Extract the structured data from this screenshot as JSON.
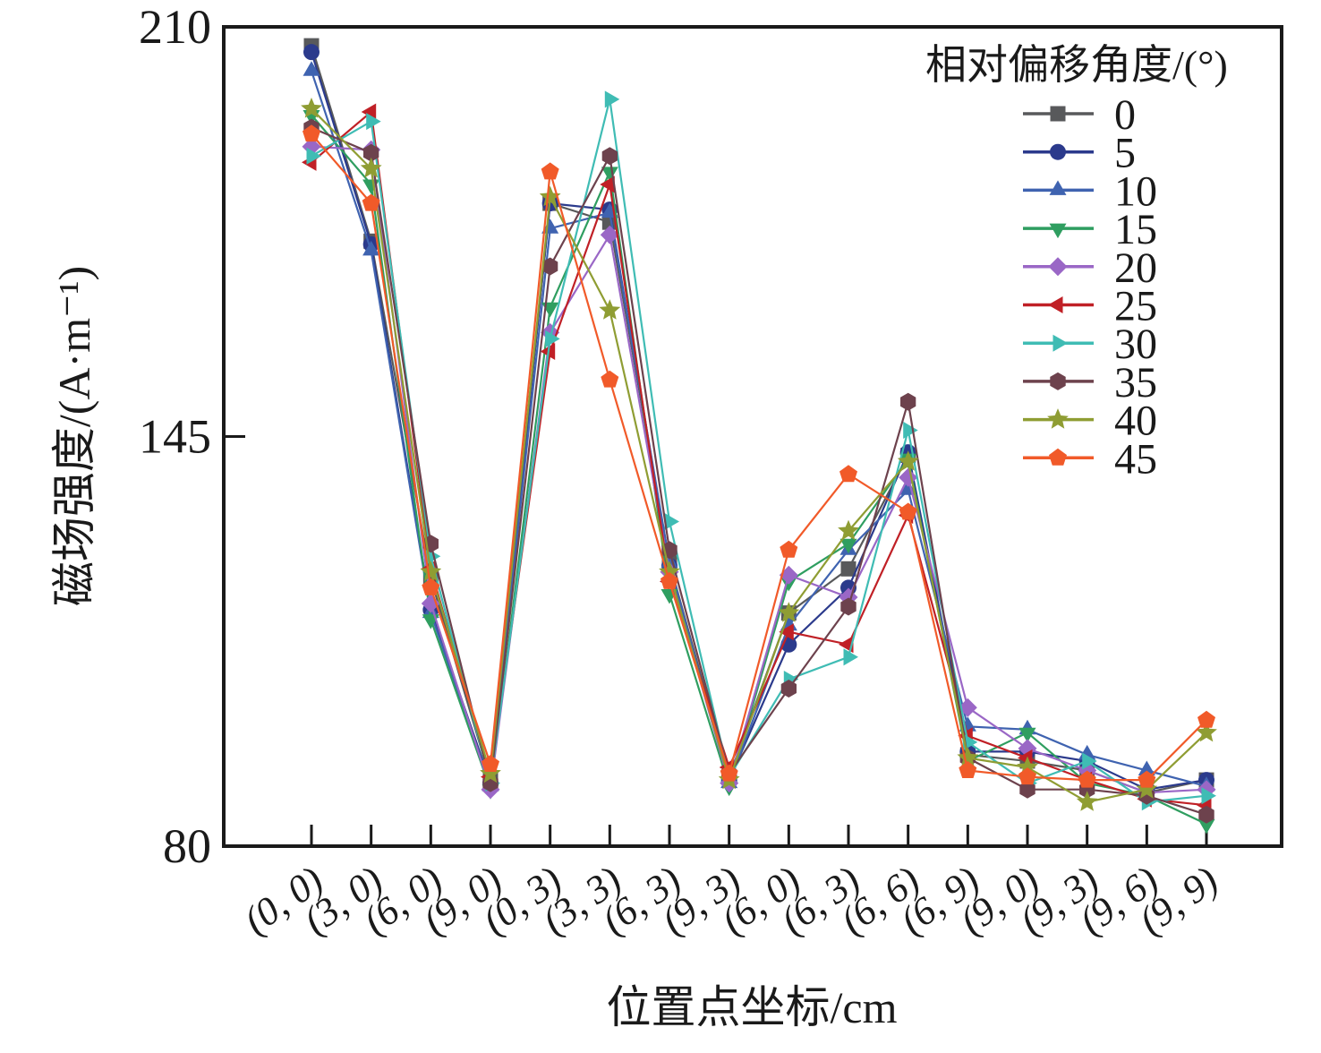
{
  "chart_data": {
    "type": "line",
    "title": "",
    "xlabel": "位置点坐标/cm",
    "ylabel": "磁场强度/(A·m⁻¹)",
    "legend_title": "相对偏移角度/(°)",
    "legend_position": "top-right-inside",
    "grid": false,
    "ylim": [
      80,
      210
    ],
    "yticks": [
      80,
      145,
      210
    ],
    "categories": [
      "(0, 0)",
      "(3, 0)",
      "(6, 0)",
      "(9, 0)",
      "(0, 3)",
      "(3, 3)",
      "(6, 3)",
      "(9, 3)",
      "(6, 0)",
      "(6, 3)",
      "(6, 6)",
      "(6, 9)",
      "(9, 0)",
      "(9, 3)",
      "(9, 6)",
      "(9, 9)"
    ],
    "series": [
      {
        "name": "0",
        "marker": "square",
        "color": "#58595b",
        "values": [
          207,
          176,
          122.5,
          90.5,
          182,
          179,
          125,
          91,
          117,
          124,
          142,
          94.5,
          93.5,
          92,
          88.5,
          90.5
        ]
      },
      {
        "name": "5",
        "marker": "circle",
        "color": "#2b3a8c",
        "values": [
          206,
          175.5,
          117.5,
          90,
          182,
          181,
          124.5,
          90.5,
          112,
          121,
          142.5,
          95,
          95,
          93.5,
          89,
          90.5
        ]
      },
      {
        "name": "10",
        "marker": "triangle-up",
        "color": "#3f63b0",
        "values": [
          203,
          174.5,
          117,
          89.5,
          178,
          180.5,
          125,
          90,
          115,
          127,
          136.5,
          99,
          98.5,
          94.5,
          92,
          89.5
        ]
      },
      {
        "name": "15",
        "marker": "triangle-down",
        "color": "#2f9e60",
        "values": [
          196,
          185,
          116,
          89,
          165.5,
          187,
          120,
          89.5,
          122,
          128,
          141.5,
          93.5,
          98,
          90,
          88,
          83.5
        ]
      },
      {
        "name": "20",
        "marker": "diamond",
        "color": "#9a67c6",
        "values": [
          191,
          190.5,
          118.5,
          89,
          161.5,
          177,
          123.5,
          90,
          123,
          119.5,
          138.5,
          102,
          95.5,
          92,
          88.5,
          89
        ]
      },
      {
        "name": "25",
        "marker": "triangle-left",
        "color": "#c02026",
        "values": [
          188.5,
          196.5,
          124,
          91,
          158.5,
          185,
          122,
          92.5,
          114,
          112,
          132.5,
          97.5,
          94,
          90.5,
          87.5,
          86.5
        ]
      },
      {
        "name": "30",
        "marker": "triangle-right",
        "color": "#3fbcb4",
        "values": [
          189.5,
          195,
          126,
          90,
          160.5,
          198.5,
          131.5,
          91,
          106.5,
          110,
          146,
          96.5,
          90,
          93.5,
          87,
          88
        ]
      },
      {
        "name": "35",
        "marker": "hexagon",
        "color": "#6d424d",
        "values": [
          194,
          190,
          128,
          90,
          172,
          189.5,
          127,
          91.5,
          105,
          118,
          150.5,
          94,
          89,
          89,
          88,
          85
        ]
      },
      {
        "name": "40",
        "marker": "star",
        "color": "#8f9d33",
        "values": [
          197,
          187.5,
          123.5,
          91.5,
          183,
          165,
          123.5,
          90.5,
          117,
          130,
          141,
          94,
          92.5,
          87,
          89,
          98
        ]
      },
      {
        "name": "45",
        "marker": "pentagon",
        "color": "#f15a29",
        "values": [
          193,
          182,
          121,
          93,
          187,
          154,
          122,
          91.5,
          127,
          139,
          133,
          92,
          91,
          90.5,
          90.5,
          100
        ]
      }
    ]
  }
}
